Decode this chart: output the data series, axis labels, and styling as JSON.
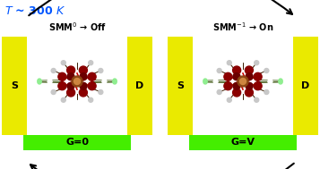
{
  "bg_color": "#ffffff",
  "yellow": "#eaea00",
  "bright_green": "#44ee00",
  "title_color": "#0055ff",
  "left_gate": "G=0",
  "right_gate": "G=V",
  "S_label": "S",
  "D_label": "D",
  "left_smm_label": "SMM$^0$ → Off",
  "right_smm_label": "SMM$^{-1}$ → On",
  "fig_w": 3.57,
  "fig_h": 1.89,
  "dpi": 100
}
